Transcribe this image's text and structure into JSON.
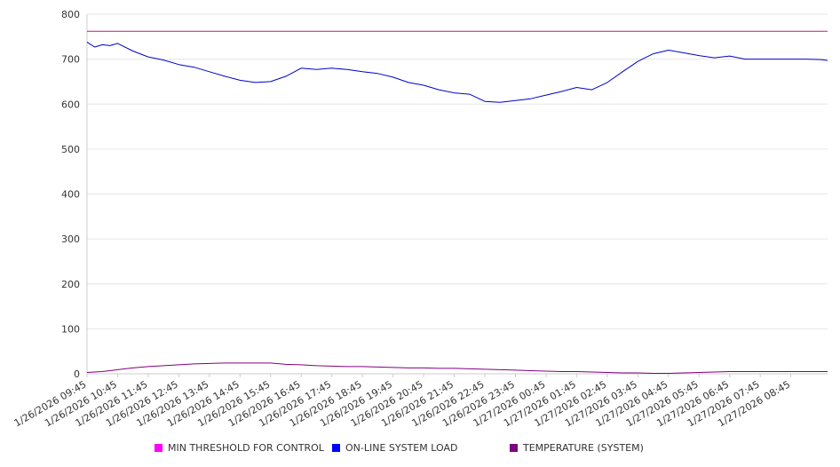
{
  "chart_data": {
    "type": "line",
    "title": "",
    "xlabel": "",
    "ylabel": "",
    "ylim": [
      0,
      800
    ],
    "yticks": [
      0,
      100,
      200,
      300,
      400,
      500,
      600,
      700,
      800
    ],
    "grid": true,
    "legend_position": "bottom",
    "x_tick_labels": [
      "1/26/2026 09:45",
      "1/26/2026 10:45",
      "1/26/2026 11:45",
      "1/26/2026 12:45",
      "1/26/2026 13:45",
      "1/26/2026 14:45",
      "1/26/2026 15:45",
      "1/26/2026 16:45",
      "1/26/2026 17:45",
      "1/26/2026 18:45",
      "1/26/2026 19:45",
      "1/26/2026 20:45",
      "1/26/2026 21:45",
      "1/26/2026 22:45",
      "1/26/2026 23:45",
      "1/27/2026 00:45",
      "1/27/2026 01:45",
      "1/27/2026 02:45",
      "1/27/2026 03:45",
      "1/27/2026 04:45",
      "1/27/2026 05:45",
      "1/27/2026 06:45",
      "1/27/2026 07:45",
      "1/27/2026 08:45"
    ],
    "x_hours": [
      0,
      0.25,
      0.5,
      0.75,
      1,
      1.5,
      2,
      2.5,
      3,
      3.5,
      4,
      4.5,
      5,
      5.5,
      6,
      6.5,
      7,
      7.5,
      8,
      8.5,
      9,
      9.5,
      10,
      10.5,
      11,
      11.5,
      12,
      12.5,
      13,
      13.5,
      14,
      14.5,
      15,
      15.5,
      16,
      16.5,
      17,
      17.5,
      18,
      18.5,
      19,
      19.5,
      20,
      20.5,
      21,
      21.5,
      22,
      22.5,
      23,
      23.5,
      24,
      24.2
    ],
    "series": [
      {
        "name": "MIN THRESHOLD FOR CONTROL",
        "color": "#c71585",
        "legend_color": "#ff00ff",
        "values": [
          762,
          762,
          762,
          762,
          762,
          762,
          762,
          762,
          762,
          762,
          762,
          762,
          762,
          762,
          762,
          762,
          762,
          762,
          762,
          762,
          762,
          762,
          762,
          762,
          762,
          762,
          762,
          762,
          762,
          762,
          762,
          762,
          762,
          762,
          762,
          762,
          762,
          762,
          762,
          762,
          762,
          762,
          762,
          762,
          762,
          762,
          762,
          762,
          762,
          762,
          762,
          762
        ]
      },
      {
        "name": "ON-LINE SYSTEM LOAD",
        "color": "#0000cc",
        "legend_color": "#0000ff",
        "values": [
          738,
          727,
          732,
          730,
          735,
          718,
          705,
          698,
          688,
          682,
          672,
          662,
          653,
          648,
          650,
          662,
          680,
          677,
          680,
          677,
          672,
          668,
          660,
          648,
          642,
          632,
          625,
          622,
          606,
          604,
          608,
          612,
          620,
          628,
          637,
          632,
          648,
          672,
          695,
          712,
          720,
          714,
          708,
          703,
          707,
          700,
          700,
          700,
          700,
          700,
          699,
          697
        ]
      },
      {
        "name": "TEMPERATURE (SYSTEM)",
        "color": "#800080",
        "legend_color": "#800080",
        "values": [
          3,
          4,
          5,
          7,
          9,
          13,
          16,
          18,
          20,
          22,
          23,
          24,
          24,
          24,
          24,
          21,
          20,
          18,
          17,
          16,
          16,
          15,
          14,
          13,
          13,
          12,
          12,
          11,
          10,
          9,
          8,
          7,
          6,
          5,
          5,
          4,
          3,
          2,
          2,
          1,
          1,
          2,
          3,
          4,
          5,
          5,
          5,
          5,
          5,
          5,
          5,
          5
        ]
      }
    ]
  },
  "legend": [
    {
      "label": "MIN THRESHOLD FOR CONTROL",
      "color": "#ff00ff"
    },
    {
      "label": "ON-LINE SYSTEM LOAD",
      "color": "#0000ff"
    },
    {
      "label": "TEMPERATURE (SYSTEM)",
      "color": "#800080"
    }
  ]
}
